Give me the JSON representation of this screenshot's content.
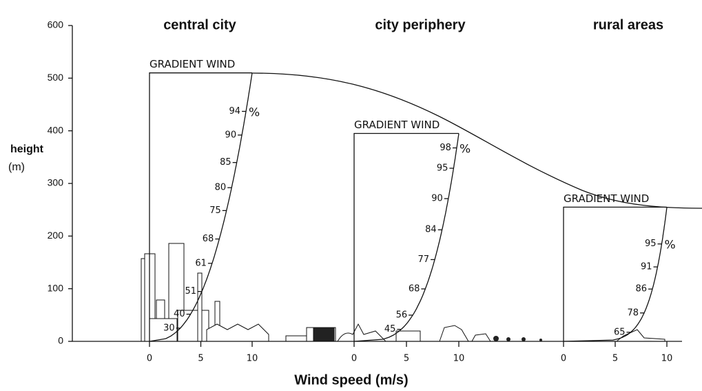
{
  "y_axis": {
    "label": "height",
    "unit": "(m)",
    "ylim": [
      0,
      600
    ],
    "yticks": [
      0,
      100,
      200,
      300,
      400,
      500,
      600
    ]
  },
  "x_axis": {
    "label": "Wind speed (m/s)"
  },
  "gradient_label": "GRADIENT WIND",
  "percent_sign": "%",
  "panels": [
    {
      "title": "central city",
      "xticks": [
        0,
        5,
        10
      ],
      "gradient_height": 510,
      "profile_exponent": 0.4,
      "percent_labels": [
        94,
        90,
        85,
        80,
        75,
        68,
        61,
        51,
        40,
        30
      ]
    },
    {
      "title": "city periphery",
      "xticks": [
        0,
        5,
        10
      ],
      "gradient_height": 395,
      "profile_exponent": 0.28,
      "percent_labels": [
        98,
        95,
        90,
        84,
        77,
        68,
        56,
        45
      ]
    },
    {
      "title": "rural areas",
      "xticks": [
        0,
        5,
        10
      ],
      "gradient_height": 255,
      "profile_exponent": 0.16,
      "percent_labels": [
        95,
        91,
        86,
        78,
        65
      ]
    }
  ]
}
